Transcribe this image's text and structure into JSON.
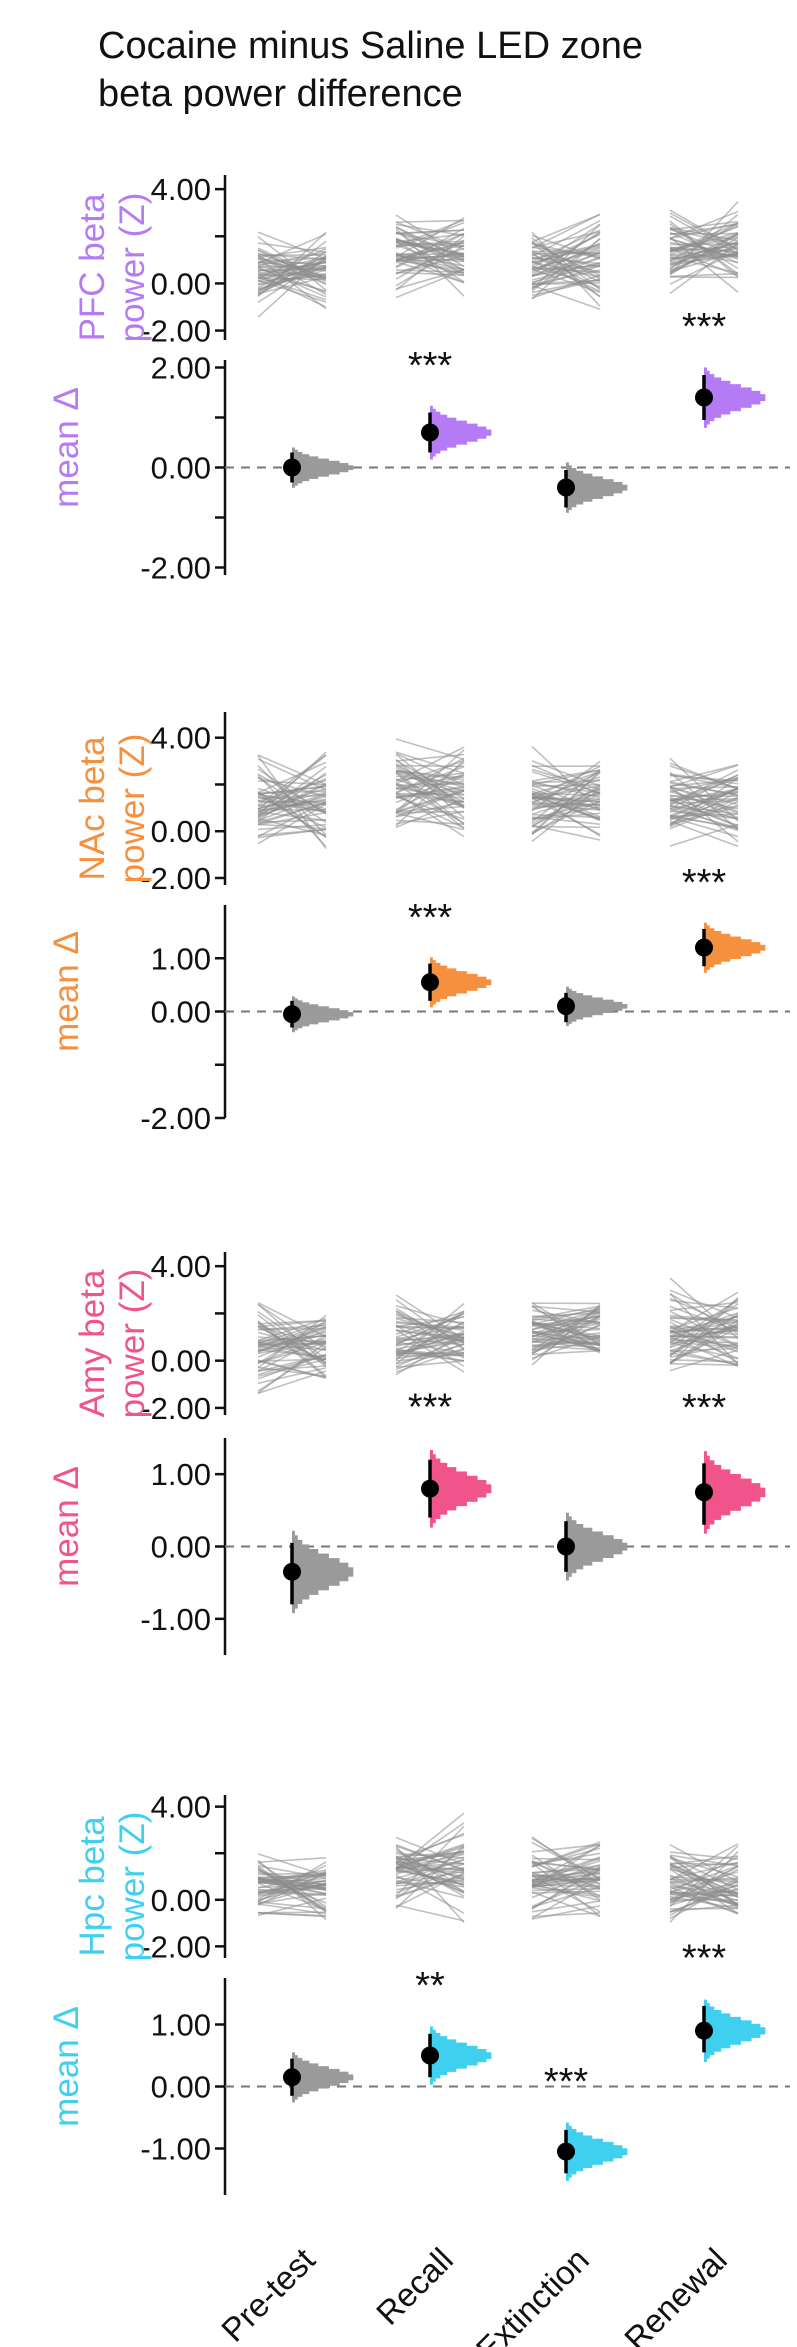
{
  "title_lines": [
    "Cocaine minus Saline LED zone",
    "beta power difference"
  ],
  "categories": [
    "Pre-test",
    "Recall",
    "Extinction",
    "Renewal"
  ],
  "chart_data": [
    {
      "type": "slopegraph",
      "region": "PFC",
      "color": "#b57bf5",
      "raw_ylabel": [
        "PFC beta",
        "power (Z)"
      ],
      "raw_ylim": [
        -2.4,
        4.6
      ],
      "raw_ticks": [
        4.0,
        0.0,
        -2.0
      ],
      "raw_minor_ticks": [
        2.0
      ],
      "raw_tick_labels": [
        "4.00",
        "0.00",
        "-2.00"
      ],
      "raw_ranges": [
        [
          -1.8,
          2.8
        ],
        [
          -1.0,
          3.7
        ],
        [
          -1.8,
          3.5
        ],
        [
          -0.9,
          3.9
        ]
      ],
      "delta_ylabel": "mean Δ",
      "delta_ylim": [
        -2.15,
        2.15
      ],
      "delta_ticks": [
        2.0,
        0.0,
        -2.0
      ],
      "delta_minor_ticks": [
        1.0,
        -1.0
      ],
      "delta_tick_labels": [
        "2.00",
        "0.00",
        "-2.00"
      ],
      "mean_delta": [
        0.0,
        0.7,
        -0.4,
        1.4
      ],
      "ci": [
        [
          -0.3,
          0.3
        ],
        [
          0.3,
          1.1
        ],
        [
          -0.8,
          -0.05
        ],
        [
          0.95,
          1.85
        ]
      ],
      "significant": [
        false,
        true,
        false,
        true
      ],
      "stars": [
        "",
        "***",
        "",
        "***"
      ]
    },
    {
      "type": "slopegraph",
      "region": "NAc",
      "color": "#f5913e",
      "raw_ylabel": [
        "NAc beta",
        "power (Z)"
      ],
      "raw_ylim": [
        -2.3,
        5.1
      ],
      "raw_ticks": [
        4.0,
        0.0,
        -2.0
      ],
      "raw_minor_ticks": [
        2.0
      ],
      "raw_tick_labels": [
        "4.00",
        "0.00",
        "-2.00"
      ],
      "raw_ranges": [
        [
          -1.8,
          4.2
        ],
        [
          -1.5,
          4.6
        ],
        [
          -1.5,
          4.2
        ],
        [
          -1.3,
          3.8
        ]
      ],
      "delta_ylabel": "mean Δ",
      "delta_ylim": [
        -2.0,
        2.0
      ],
      "delta_ticks": [
        1.0,
        0.0,
        -2.0
      ],
      "delta_minor_ticks": [
        -1.0
      ],
      "delta_tick_labels": [
        "1.00",
        "0.00",
        "-2.00"
      ],
      "mean_delta": [
        -0.05,
        0.55,
        0.1,
        1.2
      ],
      "ci": [
        [
          -0.3,
          0.2
        ],
        [
          0.2,
          0.9
        ],
        [
          -0.2,
          0.35
        ],
        [
          0.85,
          1.55
        ]
      ],
      "significant": [
        false,
        true,
        false,
        true
      ],
      "stars": [
        "",
        "***",
        "",
        "***"
      ]
    },
    {
      "type": "slopegraph",
      "region": "Amy",
      "color": "#f0548a",
      "raw_ylabel": [
        "Amy beta",
        "power (Z)"
      ],
      "raw_ylim": [
        -2.3,
        4.6
      ],
      "raw_ticks": [
        4.0,
        0.0,
        -2.0
      ],
      "raw_minor_ticks": [
        2.0
      ],
      "raw_tick_labels": [
        "4.00",
        "0.00",
        "-2.00"
      ],
      "raw_ranges": [
        [
          -1.9,
          3.2
        ],
        [
          -1.5,
          3.5
        ],
        [
          -1.0,
          3.5
        ],
        [
          -1.8,
          4.0
        ]
      ],
      "delta_ylabel": "mean Δ",
      "delta_ylim": [
        -1.5,
        1.5
      ],
      "delta_ticks": [
        1.0,
        0.0,
        -1.0
      ],
      "delta_minor_ticks": [],
      "delta_tick_labels": [
        "1.00",
        "0.00",
        "-1.00"
      ],
      "mean_delta": [
        -0.35,
        0.8,
        0.0,
        0.75
      ],
      "ci": [
        [
          -0.8,
          0.05
        ],
        [
          0.4,
          1.2
        ],
        [
          -0.35,
          0.35
        ],
        [
          0.3,
          1.15
        ]
      ],
      "significant": [
        false,
        true,
        false,
        true
      ],
      "stars": [
        "",
        "***",
        "",
        "***"
      ]
    },
    {
      "type": "slopegraph",
      "region": "Hpc",
      "color": "#3fd0f0",
      "raw_ylabel": [
        "Hpc beta",
        "power (Z)"
      ],
      "raw_ylim": [
        -2.5,
        4.5
      ],
      "raw_ticks": [
        4.0,
        0.0,
        -2.0
      ],
      "raw_minor_ticks": [
        2.0
      ],
      "raw_tick_labels": [
        "4.00",
        "0.00",
        "-2.00"
      ],
      "raw_ranges": [
        [
          -1.5,
          2.8
        ],
        [
          -1.4,
          3.9
        ],
        [
          -1.6,
          3.6
        ],
        [
          -1.7,
          3.2
        ]
      ],
      "delta_ylabel": "mean Δ",
      "delta_ylim": [
        -1.75,
        1.75
      ],
      "delta_ticks": [
        1.0,
        0.0,
        -1.0
      ],
      "delta_minor_ticks": [],
      "delta_tick_labels": [
        "1.00",
        "0.00",
        "-1.00"
      ],
      "mean_delta": [
        0.15,
        0.5,
        -1.05,
        0.9
      ],
      "ci": [
        [
          -0.15,
          0.45
        ],
        [
          0.15,
          0.85
        ],
        [
          -1.4,
          -0.7
        ],
        [
          0.55,
          1.3
        ]
      ],
      "significant": [
        false,
        true,
        true,
        true
      ],
      "stars": [
        "",
        "**",
        "***",
        "***"
      ]
    }
  ]
}
